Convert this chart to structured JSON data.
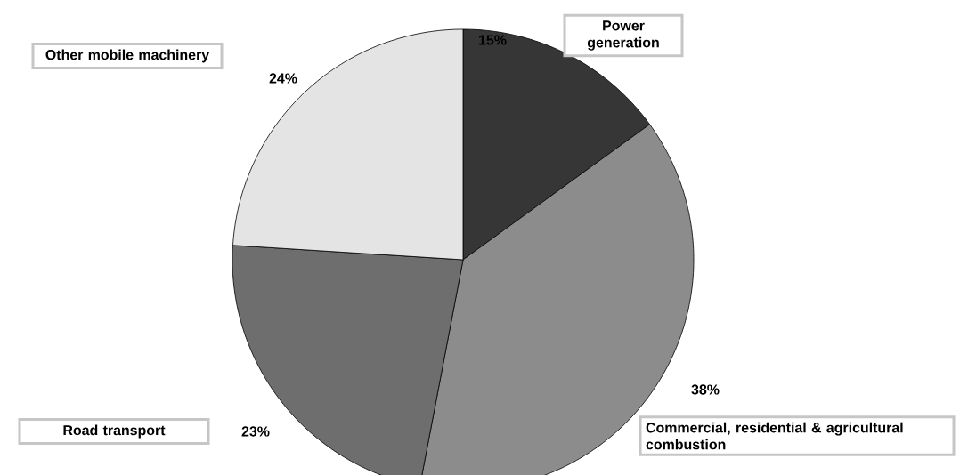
{
  "chart_data": {
    "type": "pie",
    "categories": [
      "Power generation",
      "Commercial, residential & agricultural combustion",
      "Road transport",
      "Other mobile machinery"
    ],
    "values": [
      15,
      38,
      23,
      24
    ],
    "colors": [
      "#363636",
      "#8c8c8c",
      "#6e6e6e",
      "#e4e4e4"
    ],
    "value_labels": [
      "15%",
      "38%",
      "23%",
      "24%"
    ]
  }
}
